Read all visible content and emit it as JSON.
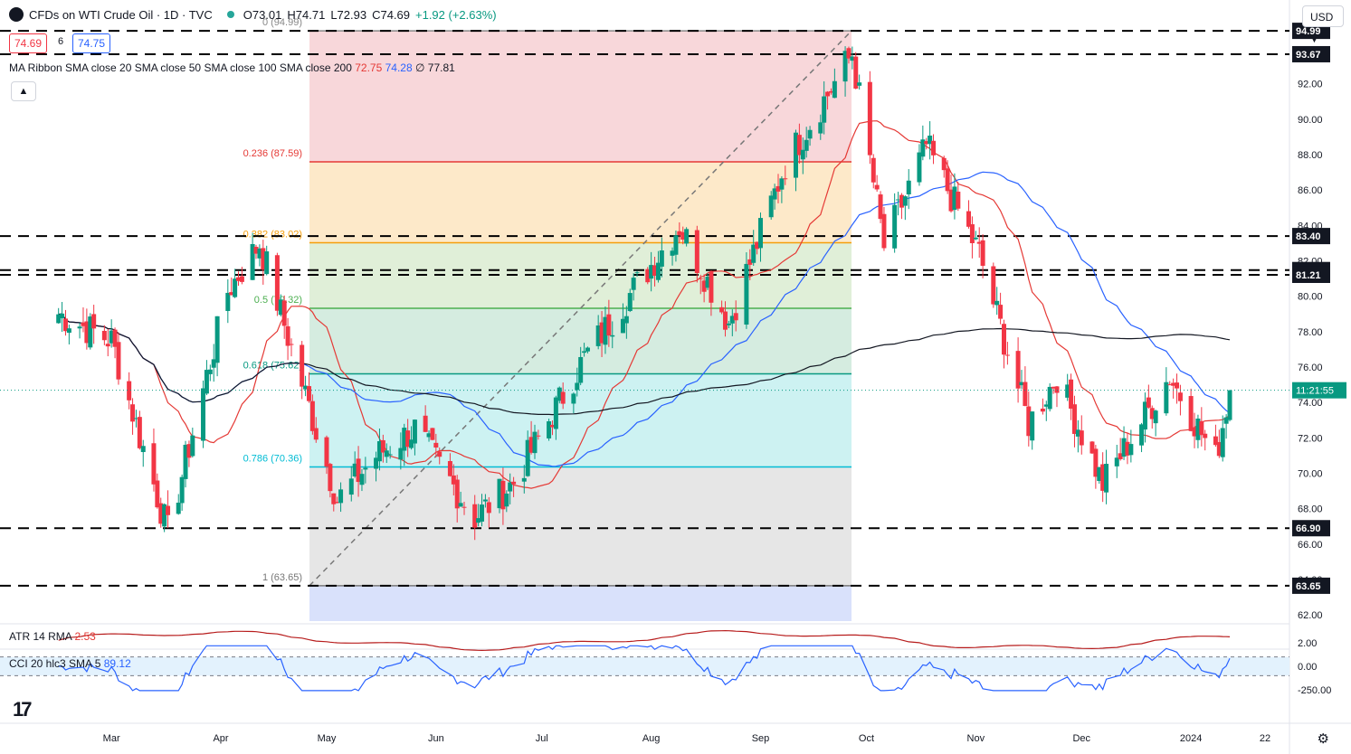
{
  "header": {
    "symbol": "CFDs on WTI Crude Oil · 1D · TVC",
    "open": "O73.01",
    "high": "H74.71",
    "low": "L72.93",
    "close": "C74.69",
    "change": "+1.92 (+2.63%)"
  },
  "quote": {
    "bid": "74.69",
    "spread": "6",
    "ask": "74.75"
  },
  "indicators": {
    "ma_ribbon_label": "MA Ribbon SMA close 20 SMA close 50 SMA close 100 SMA close 200",
    "ma20": "72.75",
    "ma50": "74.28",
    "ma100": "∅",
    "ma200": "77.81",
    "atr_label": "ATR 14 RMA",
    "atr_value": "2.53",
    "cci_label": "CCI 20 hlc3 SMA 5",
    "cci_value": "89.12"
  },
  "currency": "USD",
  "countdown": "11:21:55",
  "colors": {
    "up": "#089981",
    "down": "#f23645",
    "sma20": "#e53935",
    "sma50": "#2962ff",
    "sma200": "#131722",
    "cci": "#2962ff",
    "atr": "#b71c1c"
  },
  "chart_data": {
    "type": "candlestick",
    "title": "CFDs on WTI Crude Oil · 1D · TVC",
    "ylim": [
      61.5,
      95.2
    ],
    "x_tick_labels": [
      "Mar",
      "Apr",
      "May",
      "Jun",
      "Jul",
      "Aug",
      "Sep",
      "Oct",
      "Nov",
      "Dec",
      "2024",
      "22"
    ],
    "y_tick_labels": [
      "62.00",
      "64.00",
      "66.00",
      "68.00",
      "70.00",
      "72.00",
      "74.00",
      "76.00",
      "78.00",
      "80.00",
      "82.00",
      "84.00",
      "86.00",
      "88.00",
      "90.00",
      "92.00"
    ],
    "horizontal_levels": [
      "94.99",
      "93.67",
      "83.40",
      "81.48",
      "81.21",
      "66.90",
      "63.65"
    ],
    "fibonacci": [
      {
        "label": "0 (94.99)",
        "value": 94.99
      },
      {
        "label": "0.236 (87.59)",
        "value": 87.59
      },
      {
        "label": "0.382 (83.02)",
        "value": 83.02
      },
      {
        "label": "0.5 (79.32)",
        "value": 79.32
      },
      {
        "label": "0.618 (75.62)",
        "value": 75.62
      },
      {
        "label": "0.786 (70.36)",
        "value": 70.36
      },
      {
        "label": "1 (63.65)",
        "value": 63.65
      }
    ],
    "anchor_points": [
      {
        "date": "2023-02-14",
        "close": 79.0
      },
      {
        "date": "2023-03-01",
        "close": 77.5
      },
      {
        "date": "2023-03-17",
        "close": 66.7
      },
      {
        "date": "2023-04-03",
        "close": 80.3
      },
      {
        "date": "2023-04-12",
        "close": 83.0
      },
      {
        "date": "2023-05-04",
        "close": 68.5
      },
      {
        "date": "2023-05-15",
        "close": 71.0
      },
      {
        "date": "2023-05-26",
        "close": 72.5
      },
      {
        "date": "2023-06-12",
        "close": 67.5
      },
      {
        "date": "2023-06-23",
        "close": 69.5
      },
      {
        "date": "2023-07-13",
        "close": 76.5
      },
      {
        "date": "2023-08-09",
        "close": 84.0
      },
      {
        "date": "2023-08-23",
        "close": 78.5
      },
      {
        "date": "2023-09-08",
        "close": 87.5
      },
      {
        "date": "2023-09-27",
        "close": 93.7
      },
      {
        "date": "2023-10-06",
        "close": 82.8
      },
      {
        "date": "2023-10-18",
        "close": 88.5
      },
      {
        "date": "2023-11-02",
        "close": 82.4
      },
      {
        "date": "2023-11-16",
        "close": 72.8
      },
      {
        "date": "2023-11-24",
        "close": 75.5
      },
      {
        "date": "2023-12-07",
        "close": 69.4
      },
      {
        "date": "2023-12-26",
        "close": 75.5
      },
      {
        "date": "2024-01-08",
        "close": 70.8
      },
      {
        "date": "2024-01-12",
        "close": 74.69
      }
    ],
    "atr": {
      "value": 2.53,
      "range": [
        1.5,
        3.5
      ],
      "y_tick_labels": [
        "2.00"
      ]
    },
    "cci": {
      "value": 89.12,
      "bands": [
        100,
        -100
      ],
      "y_tick_labels": [
        "0.00",
        "-250.00"
      ]
    }
  }
}
